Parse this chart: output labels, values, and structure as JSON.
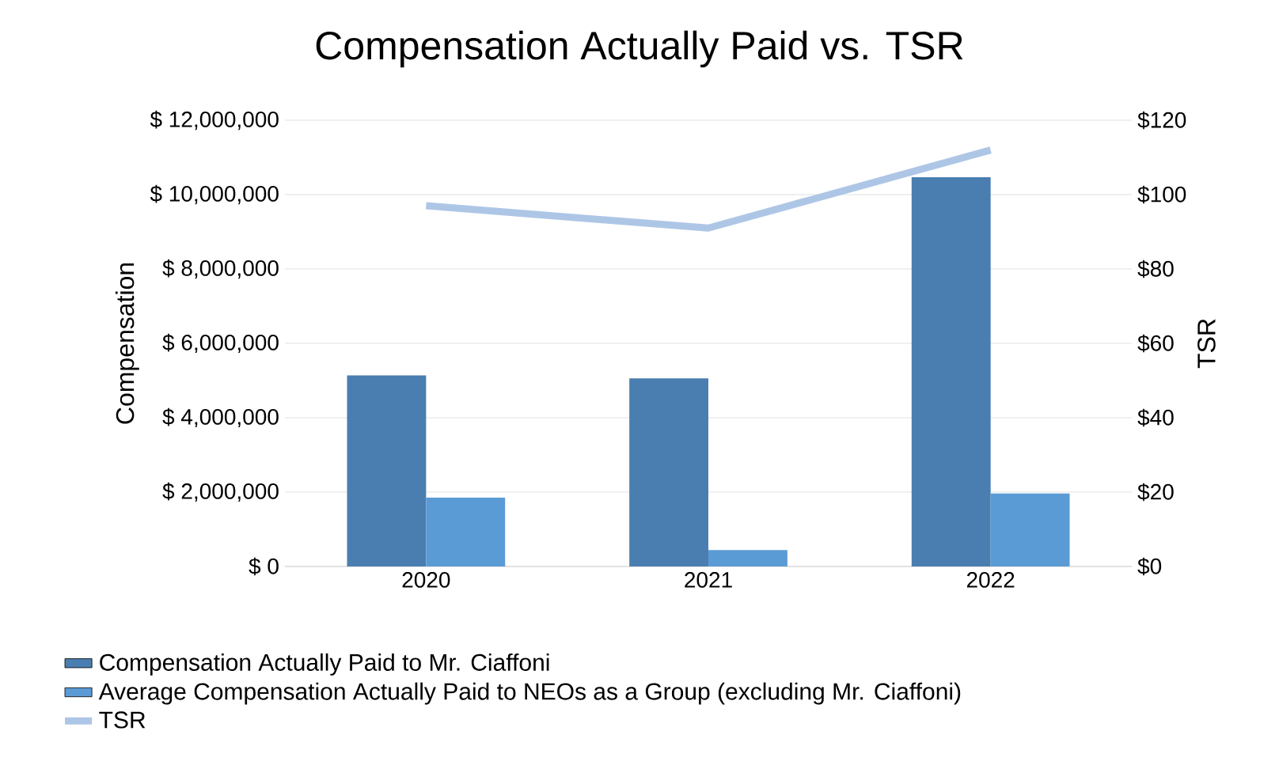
{
  "chart_data": {
    "type": "bar",
    "title": "Compensation Actually Paid vs. TSR",
    "ylabel": "Compensation",
    "y2label": "TSR",
    "categories": [
      "2020",
      "2021",
      "2022"
    ],
    "series": [
      {
        "name": "Compensation Actually Paid to Mr. Ciaffoni",
        "color": "#4a7eb0",
        "values": [
          5140000,
          5060000,
          10470000
        ]
      },
      {
        "name": "Average Compensation Actually Paid to NEOs as a Group (excluding Mr. Ciaffoni)",
        "color": "#5b9bd5",
        "values": [
          1850000,
          440000,
          1960000
        ]
      },
      {
        "name": "TSR",
        "type": "line",
        "axis": "y2",
        "color": "#aec6e6",
        "line_style": "solid",
        "marker": "none",
        "values": [
          97,
          91,
          112
        ]
      }
    ],
    "ylim": [
      0,
      12000000
    ],
    "yticks": [
      {
        "value": 0,
        "label": "$ 0"
      },
      {
        "value": 2000000,
        "label": "$ 2,000,000"
      },
      {
        "value": 4000000,
        "label": "$ 4,000,000"
      },
      {
        "value": 6000000,
        "label": "$ 6,000,000"
      },
      {
        "value": 8000000,
        "label": "$ 8,000,000"
      },
      {
        "value": 10000000,
        "label": "$ 10,000,000"
      },
      {
        "value": 12000000,
        "label": "$ 12,000,000"
      }
    ],
    "y2lim": [
      0,
      120
    ],
    "y2ticks": [
      {
        "value": 0,
        "label": "$0"
      },
      {
        "value": 20,
        "label": "$20"
      },
      {
        "value": 40,
        "label": "$40"
      },
      {
        "value": 60,
        "label": "$60"
      },
      {
        "value": 80,
        "label": "$80"
      },
      {
        "value": 100,
        "label": "$100"
      },
      {
        "value": 120,
        "label": "$120"
      }
    ],
    "grid": "y",
    "legend": "bottom"
  }
}
